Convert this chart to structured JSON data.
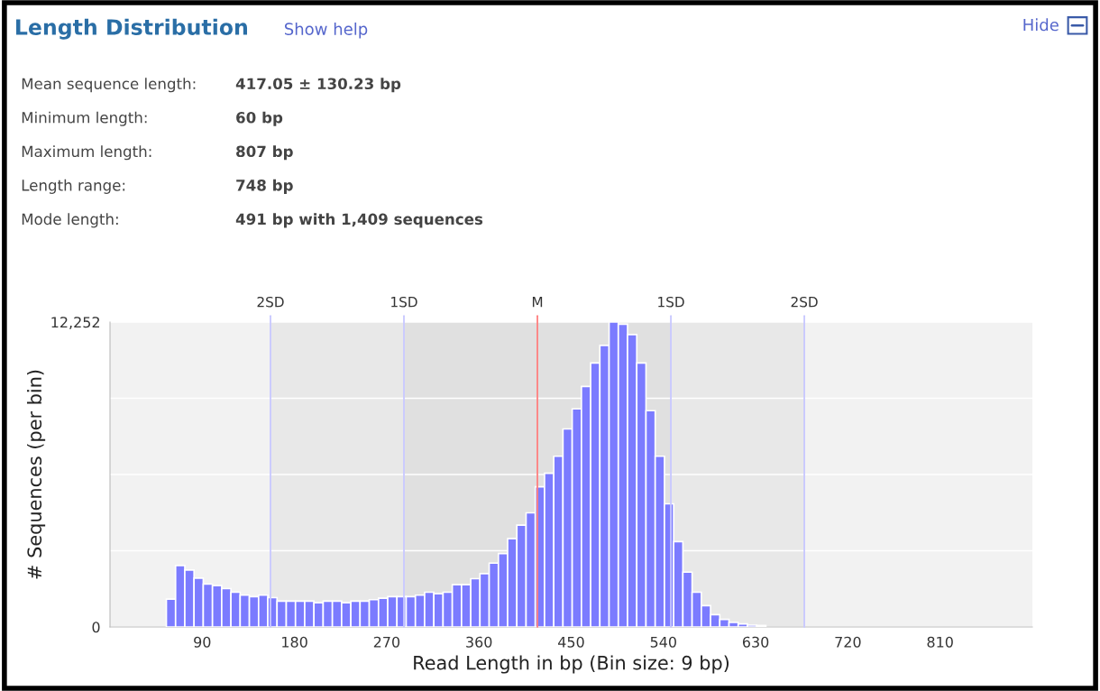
{
  "chart_data": {
    "type": "histogram",
    "title": "Length Distribution",
    "xlabel": "Read Length in bp (Bin size: 9 bp)",
    "ylabel": "# Sequences (per bin)",
    "annotations": [
      "Show help",
      "Hide",
      "Mean sequence length:",
      "417.05 ± 130.23 bp",
      "Minimum length:",
      "60 bp",
      "Maximum length:",
      "807 bp",
      "Length range:",
      "748 bp",
      "Mode length:",
      "491 bp with 1,409 sequences"
    ],
    "bins": [
      55,
      64,
      73,
      82,
      91,
      100,
      109,
      118,
      127,
      136,
      145,
      154,
      163,
      172,
      181,
      190,
      199,
      208,
      217,
      226,
      235,
      244,
      253,
      262,
      271,
      280,
      289,
      298,
      307,
      316,
      325,
      334,
      343,
      352,
      361,
      370,
      379,
      388,
      397,
      406,
      415,
      424,
      433,
      442,
      451,
      460,
      469,
      478,
      487,
      496,
      505,
      514,
      523,
      532,
      541,
      550,
      559,
      568,
      577,
      586,
      595,
      604,
      613,
      622,
      631,
      640
    ],
    "values": [
      1119,
      2467,
      2287,
      1962,
      1721,
      1661,
      1540,
      1396,
      1276,
      1216,
      1276,
      1179,
      1035,
      1035,
      1035,
      1035,
      975,
      1035,
      1035,
      975,
      1035,
      1035,
      1095,
      1155,
      1216,
      1216,
      1216,
      1276,
      1396,
      1336,
      1396,
      1697,
      1697,
      1938,
      2142,
      2563,
      2949,
      3550,
      4092,
      4585,
      5632,
      6174,
      6860,
      7955,
      8761,
      9664,
      10603,
      11313,
      12252,
      12167,
      11746,
      10603,
      8689,
      6860,
      4946,
      3430,
      2202,
      1396,
      854,
      493,
      301,
      181,
      120,
      72,
      60
    ],
    "color": "#7b7bff",
    "xlim": [
      0,
      900
    ],
    "xticks": [
      90,
      180,
      270,
      360,
      450,
      540,
      630,
      720,
      810
    ],
    "ylim": [
      0,
      12252
    ],
    "yticks": [
      0,
      {
        "value": 3063,
        "label": null
      },
      {
        "value": 6126,
        "label": null
      },
      {
        "value": 9189,
        "label": null
      },
      {
        "value": 12252,
        "label": "12,252"
      }
    ],
    "grid": "y",
    "bands": [
      {
        "axis": "x",
        "from": 156.59,
        "to": 677.51,
        "color": "#e8e8e8"
      },
      {
        "axis": "x",
        "from": 286.82,
        "to": 547.28,
        "color": "#e0e0e0"
      }
    ],
    "ref_lines": [
      {
        "axis": "x",
        "value": 156.59,
        "label": "2SD",
        "color": "#c8c8ff"
      },
      {
        "axis": "x",
        "value": 286.82,
        "label": "1SD",
        "color": "#c8c8ff"
      },
      {
        "axis": "x",
        "value": 417.05,
        "label": "M",
        "color": "#ff8080"
      },
      {
        "axis": "x",
        "value": 547.28,
        "label": "1SD",
        "color": "#c8c8ff"
      },
      {
        "axis": "x",
        "value": 677.51,
        "label": "2SD",
        "color": "#c8c8ff"
      }
    ]
  }
}
